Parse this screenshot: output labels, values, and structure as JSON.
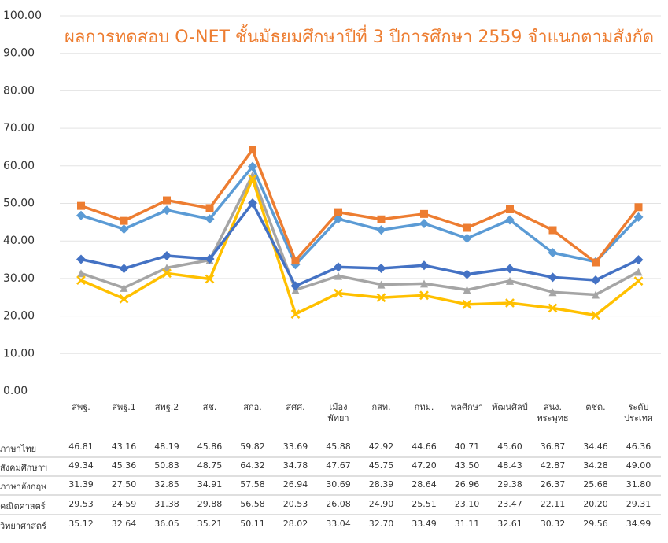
{
  "chart_data": {
    "type": "line",
    "title": "ผลการทดสอบ O-NET ชั้นมัธยมศึกษาปีที่ 3 ปีการศึกษา 2559 จำแนกตามสังกัด",
    "categories": [
      "สพฐ.",
      "สพฐ.1",
      "สพฐ.2",
      "สช.",
      "สกอ.",
      "สศศ.",
      "เมือง\nพัทยา",
      "กสท.",
      "กทม.",
      "พลศึกษา",
      "พัฒนศิลป์",
      "สนง.\nพระพุทธ",
      "ตชด.",
      "ระดับ\nประเทศ"
    ],
    "series": [
      {
        "name": "ภาษาไทย",
        "color": "#5b9bd5",
        "marker": "diamond",
        "values": [
          46.81,
          43.16,
          48.19,
          45.86,
          59.82,
          33.69,
          45.88,
          42.92,
          44.66,
          40.71,
          45.6,
          36.87,
          34.46,
          46.36
        ],
        "value_labels": [
          "46.81",
          "43.16",
          "48.19",
          "45.86",
          "59.82",
          "33.69",
          "45.88",
          "42.92",
          "44.66",
          "40.71",
          "45.60",
          "36.87",
          "34.46",
          "46.36"
        ]
      },
      {
        "name": "สังคมศึกษาฯ",
        "color": "#ed7d31",
        "marker": "square",
        "values": [
          49.34,
          45.36,
          50.83,
          48.75,
          64.32,
          34.78,
          47.67,
          45.75,
          47.2,
          43.5,
          48.43,
          42.87,
          34.28,
          49.0
        ],
        "value_labels": [
          "49.34",
          "45.36",
          "50.83",
          "48.75",
          "64.32",
          "34.78",
          "47.67",
          "45.75",
          "47.20",
          "43.50",
          "48.43",
          "42.87",
          "34.28",
          "49.00"
        ]
      },
      {
        "name": "ภาษาอังกฤษ",
        "color": "#a5a5a5",
        "marker": "triangle",
        "values": [
          31.39,
          27.5,
          32.85,
          34.91,
          57.58,
          26.94,
          30.69,
          28.39,
          28.64,
          26.96,
          29.38,
          26.37,
          25.68,
          31.8
        ],
        "value_labels": [
          "31.39",
          "27.50",
          "32.85",
          "34.91",
          "57.58",
          "26.94",
          "30.69",
          "28.39",
          "28.64",
          "26.96",
          "29.38",
          "26.37",
          "25.68",
          "31.80"
        ]
      },
      {
        "name": "คณิตศาสตร์",
        "color": "#ffc000",
        "marker": "x",
        "values": [
          29.53,
          24.59,
          31.38,
          29.88,
          56.58,
          20.53,
          26.08,
          24.9,
          25.51,
          23.1,
          23.47,
          22.11,
          20.2,
          29.31
        ],
        "value_labels": [
          "29.53",
          "24.59",
          "31.38",
          "29.88",
          "56.58",
          "20.53",
          "26.08",
          "24.90",
          "25.51",
          "23.10",
          "23.47",
          "22.11",
          "20.20",
          "29.31"
        ]
      },
      {
        "name": "วิทยาศาสตร์",
        "color": "#4472c4",
        "marker": "diamond",
        "values": [
          35.12,
          32.64,
          36.05,
          35.21,
          50.11,
          28.02,
          33.04,
          32.7,
          33.49,
          31.11,
          32.61,
          30.32,
          29.56,
          34.99
        ],
        "value_labels": [
          "35.12",
          "32.64",
          "36.05",
          "35.21",
          "50.11",
          "28.02",
          "33.04",
          "32.70",
          "33.49",
          "31.11",
          "32.61",
          "30.32",
          "29.56",
          "34.99"
        ]
      }
    ],
    "ylim": [
      0,
      100
    ],
    "yticks": [
      {
        "value": 0,
        "label": "0.00"
      },
      {
        "value": 10,
        "label": "10.00"
      },
      {
        "value": 20,
        "label": "20.00"
      },
      {
        "value": 30,
        "label": "30.00"
      },
      {
        "value": 40,
        "label": "40.00"
      },
      {
        "value": 50,
        "label": "50.00"
      },
      {
        "value": 60,
        "label": "60.00"
      },
      {
        "value": 70,
        "label": "70.00"
      },
      {
        "value": 80,
        "label": "80.00"
      },
      {
        "value": 90,
        "label": "90.00"
      },
      {
        "value": 100,
        "label": "100.00"
      }
    ],
    "grid": true
  }
}
